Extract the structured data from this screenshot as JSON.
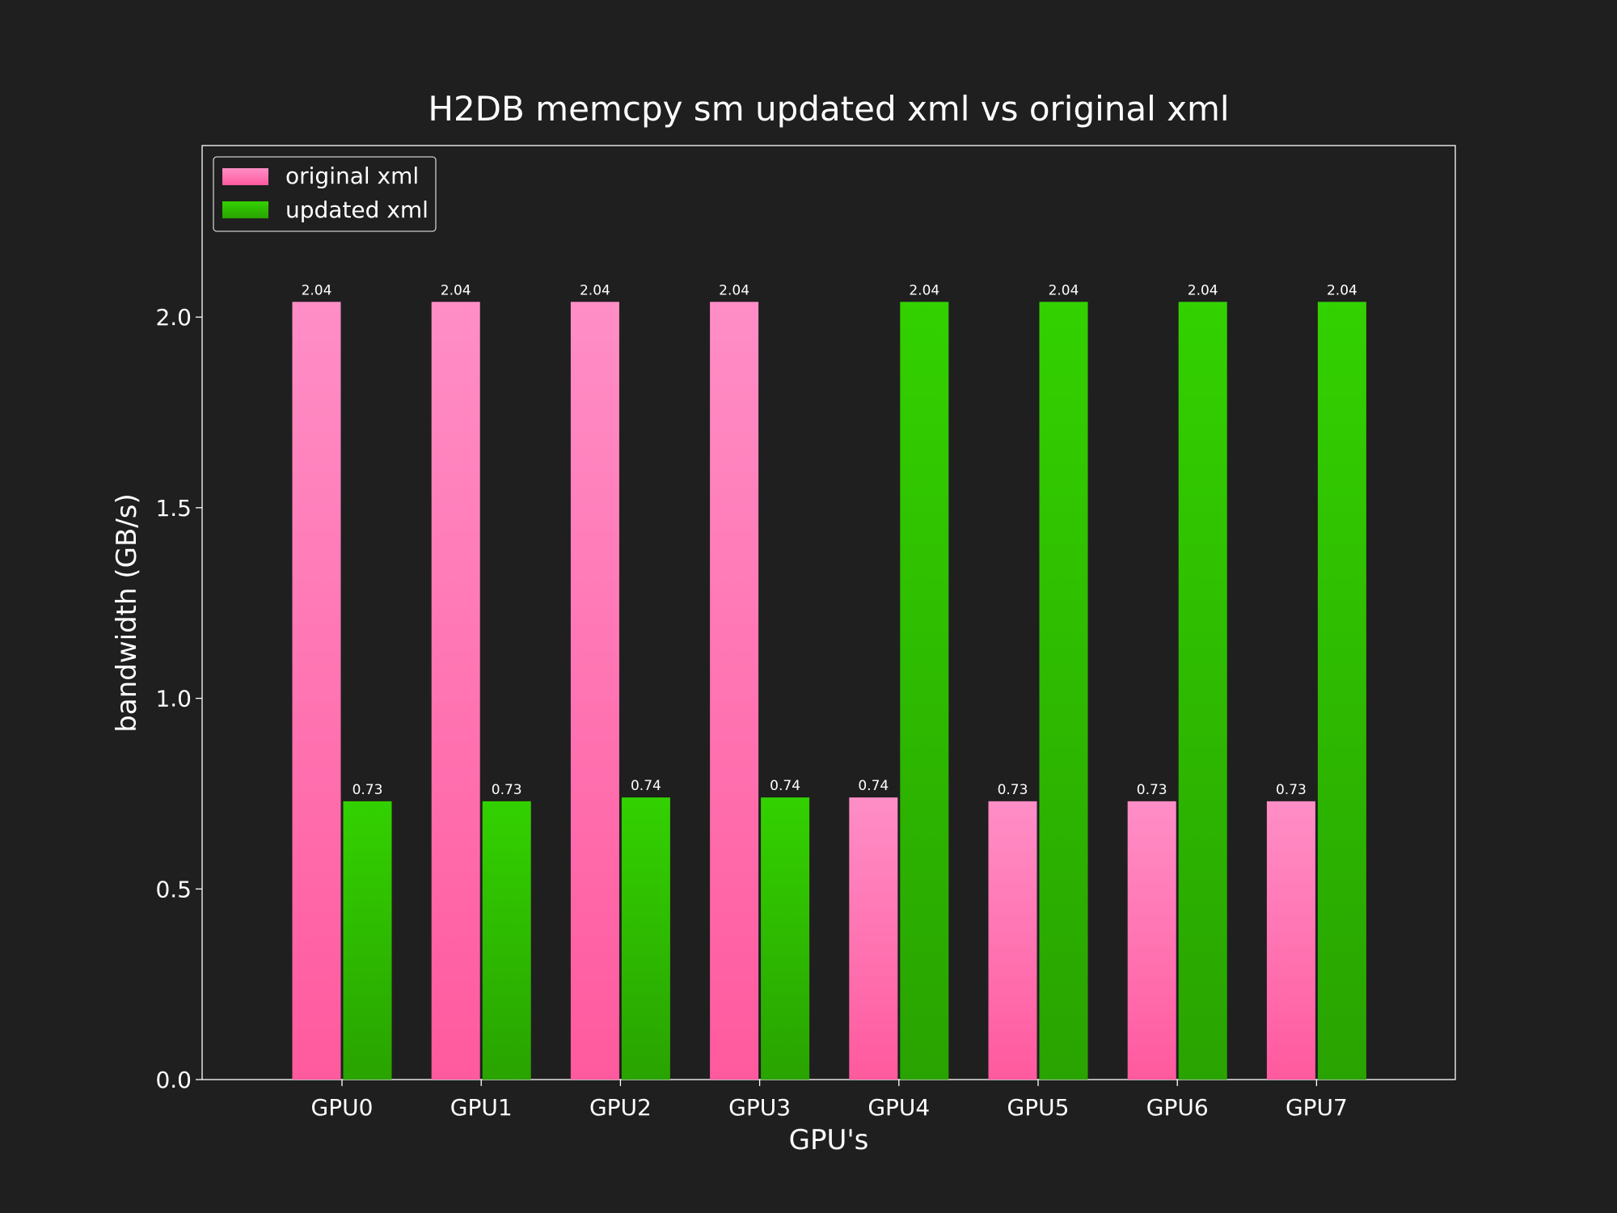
{
  "chart_data": {
    "type": "bar",
    "title": "H2DB memcpy sm updated xml vs original xml",
    "xlabel": "GPU's",
    "ylabel": "bandwidth (GB/s)",
    "categories": [
      "GPU0",
      "GPU1",
      "GPU2",
      "GPU3",
      "GPU4",
      "GPU5",
      "GPU6",
      "GPU7"
    ],
    "series": [
      {
        "name": "original xml",
        "values": [
          2.04,
          2.04,
          2.04,
          2.04,
          0.74,
          0.73,
          0.73,
          0.73
        ],
        "labels": [
          "2.04",
          "2.04",
          "2.04",
          "2.04",
          "0.74",
          "0.73",
          "0.73",
          "0.73"
        ],
        "color_top": "#ff8ec6",
        "color_bottom": "#ff5a9e"
      },
      {
        "name": "updated xml",
        "values": [
          0.73,
          0.73,
          0.74,
          0.74,
          2.04,
          2.04,
          2.04,
          2.04
        ],
        "labels": [
          "0.73",
          "0.73",
          "0.74",
          "0.74",
          "2.04",
          "2.04",
          "2.04",
          "2.04"
        ],
        "color_top": "#33d100",
        "color_bottom": "#29a300"
      }
    ],
    "ylim": [
      0,
      2.45
    ],
    "yticks": [
      0.0,
      0.5,
      1.0,
      1.5,
      2.0
    ],
    "ytick_labels": [
      "0.0",
      "0.5",
      "1.0",
      "1.5",
      "2.0"
    ],
    "legend_position": "top-left",
    "grid": false,
    "background": "#1f1f1f",
    "text_color": "#ffffff"
  }
}
